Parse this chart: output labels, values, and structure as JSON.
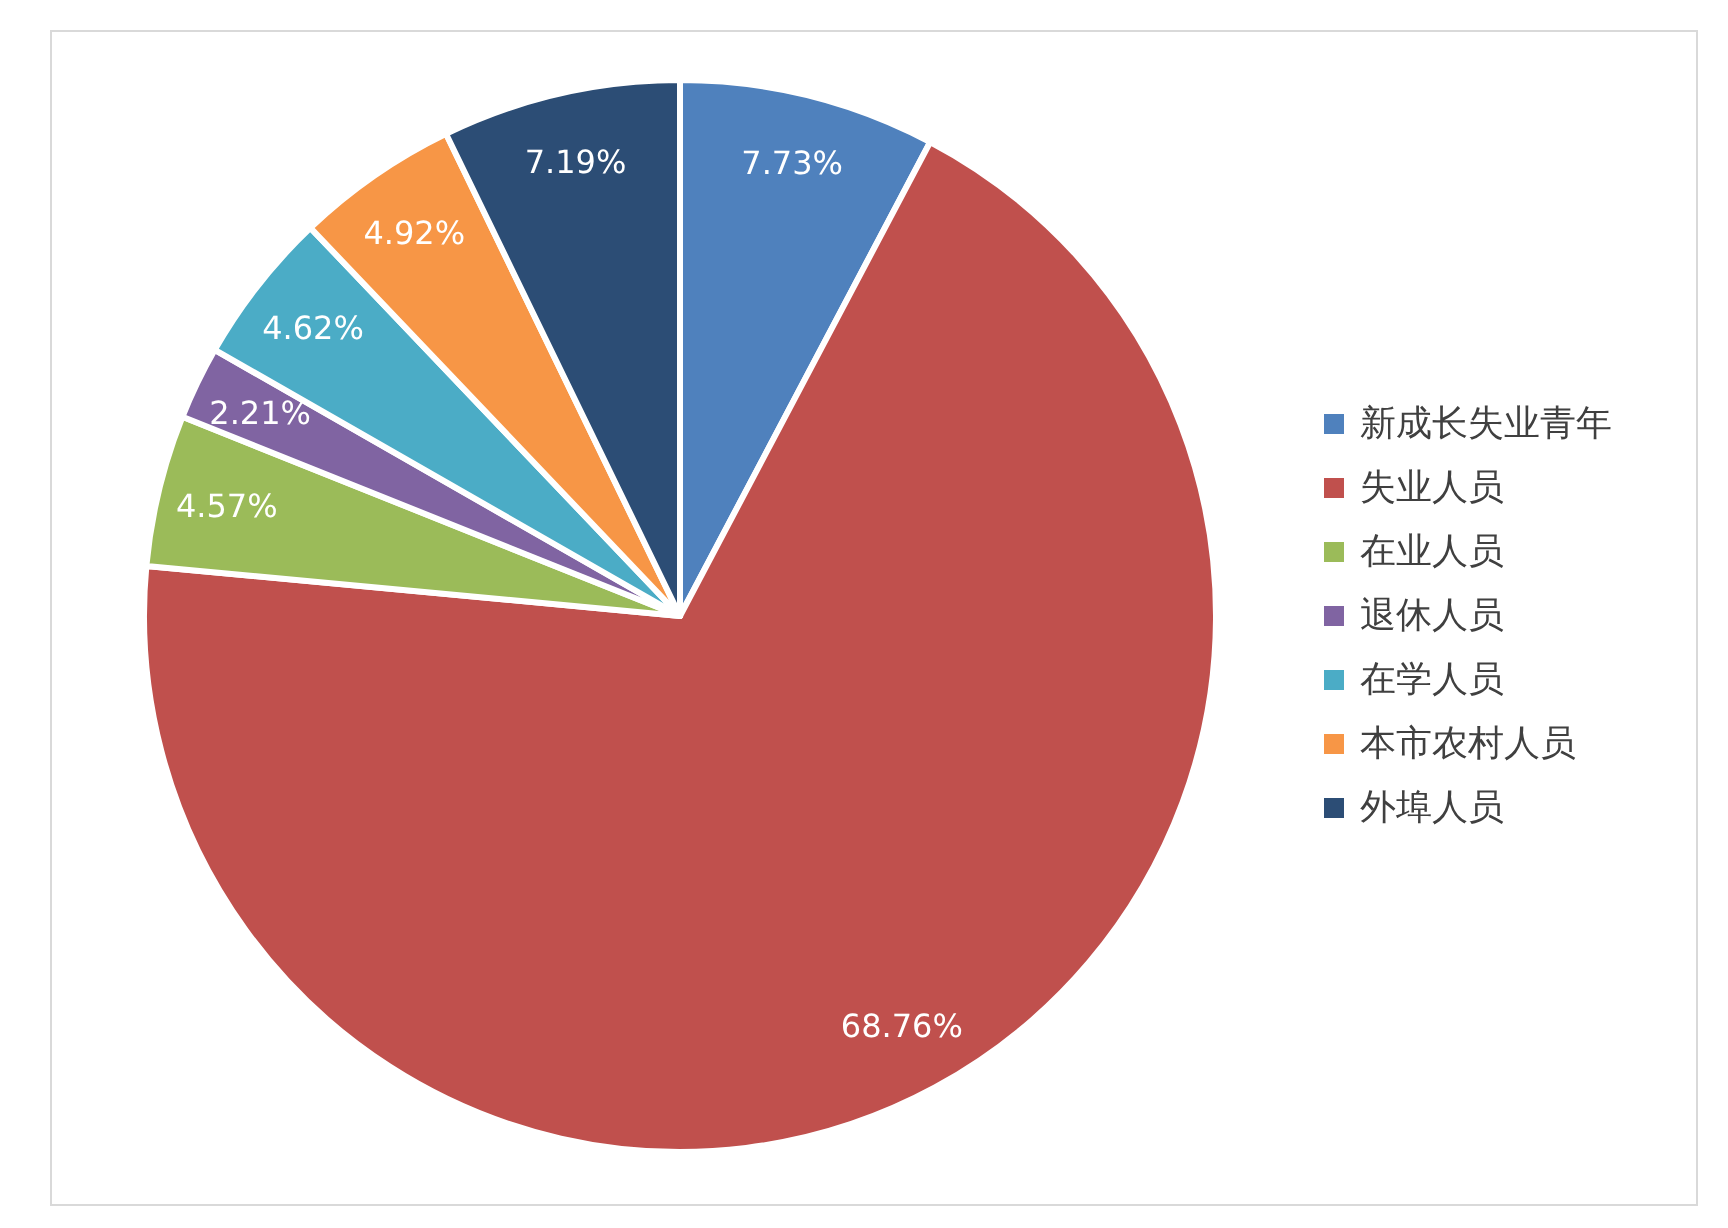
{
  "chart_data": {
    "type": "pie",
    "categories": [
      "新成长失业青年",
      "失业人员",
      "在业人员",
      "退休人员",
      "在学人员",
      "本市农村人员",
      "外埠人员"
    ],
    "values": [
      7.73,
      68.76,
      4.57,
      2.21,
      4.62,
      4.92,
      7.19
    ],
    "value_labels": [
      "7.73%",
      "68.76%",
      "4.57%",
      "2.21%",
      "4.62%",
      "4.92%",
      "7.19%"
    ],
    "colors": [
      "#4f81bd",
      "#c0504d",
      "#9bbb59",
      "#8064a2",
      "#4bacc6",
      "#f79646",
      "#2c4d75"
    ],
    "legend": "right"
  }
}
